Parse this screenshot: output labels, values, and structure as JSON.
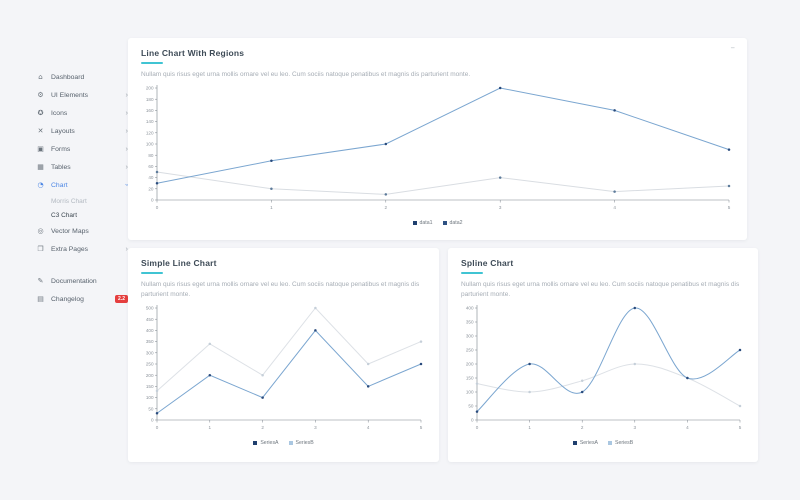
{
  "colors": {
    "accent_teal": "#40c4d3",
    "active_blue": "#4d87e5",
    "badge_red": "#e53e3e",
    "axis": "#7a828b",
    "tick_label": "#8b929a"
  },
  "icons": {
    "collapse_glyph": "–"
  },
  "sidebar": {
    "items": [
      {
        "label": "Dashboard",
        "icon_name": "home-icon",
        "glyph": "⌂",
        "chevron": null
      },
      {
        "label": "UI Elements",
        "icon_name": "gear-icon",
        "glyph": "⚙",
        "chevron": "right"
      },
      {
        "label": "Icons",
        "icon_name": "shield-icon",
        "glyph": "✪",
        "chevron": "right"
      },
      {
        "label": "Layouts",
        "icon_name": "layouts-icon",
        "glyph": "✕",
        "chevron": "right"
      },
      {
        "label": "Forms",
        "icon_name": "forms-icon",
        "glyph": "▣",
        "chevron": "right"
      },
      {
        "label": "Tables",
        "icon_name": "tables-icon",
        "glyph": "▦",
        "chevron": "right"
      },
      {
        "label": "Chart",
        "icon_name": "pie-chart-icon",
        "glyph": "◔",
        "chevron": "down",
        "active": true,
        "children": [
          {
            "label": "Morris Chart",
            "active": false
          },
          {
            "label": "C3 Chart",
            "active": true
          }
        ]
      },
      {
        "label": "Vector Maps",
        "icon_name": "globe-icon",
        "glyph": "◎",
        "chevron": null
      },
      {
        "label": "Extra Pages",
        "icon_name": "pages-icon",
        "glyph": "❐",
        "chevron": "right"
      }
    ],
    "footer_items": [
      {
        "label": "Documentation",
        "icon_name": "pencil-icon",
        "glyph": "✎"
      },
      {
        "label": "Changelog",
        "icon_name": "list-icon",
        "glyph": "▤",
        "badge": "2.2"
      }
    ]
  },
  "cards": [
    {
      "title": "Line Chart With Regions",
      "description": "Nullam quis risus eget urna mollis ornare vel eu leo. Cum sociis natoque penatibus et magnis dis parturient monte."
    },
    {
      "title": "Simple Line Chart",
      "description": "Nullam quis risus eget urna mollis ornare vel eu leo. Cum sociis natoque penatibus et magnis dis parturient monte."
    },
    {
      "title": "Spline Chart",
      "description": "Nullam quis risus eget urna mollis ornare vel eu leo. Cum sociis natoque penatibus et magnis dis parturient monte."
    }
  ],
  "chart_data": [
    {
      "type": "line",
      "title": "Line Chart With Regions",
      "x": [
        0,
        1,
        2,
        3,
        4,
        5
      ],
      "series": [
        {
          "name": "data1",
          "values": [
            30,
            70,
            100,
            200,
            160,
            90
          ],
          "line_color": "#7ba6d0",
          "point_color": "#284a7c",
          "legend_color": "#1f3f6e"
        },
        {
          "name": "data2",
          "values": [
            50,
            20,
            10,
            40,
            15,
            25
          ],
          "line_color": "#d9dde2",
          "point_color": "#5d7b9b",
          "legend_color": "#2e5182"
        }
      ],
      "xlabel": "",
      "ylabel": "",
      "ylim": [
        0,
        200
      ],
      "ystep": 20,
      "grid": false,
      "legend_position": "bottom",
      "curve": "linear"
    },
    {
      "type": "line",
      "title": "Simple Line Chart",
      "x": [
        0,
        1,
        2,
        3,
        4,
        5
      ],
      "series": [
        {
          "name": "SeriesA",
          "values": [
            30,
            200,
            100,
            400,
            150,
            250
          ],
          "line_color": "#7ba6d0",
          "point_color": "#284a7c",
          "legend_color": "#1f3f6e"
        },
        {
          "name": "SeriesB",
          "values": [
            130,
            340,
            200,
            500,
            250,
            350
          ],
          "line_color": "#dde1e6",
          "point_color": "#c5cfd9",
          "legend_color": "#aac7e1"
        }
      ],
      "xlabel": "",
      "ylabel": "",
      "ylim": [
        0,
        500
      ],
      "ystep": 50,
      "grid": false,
      "legend_position": "bottom",
      "curve": "linear"
    },
    {
      "type": "line",
      "title": "Spline Chart",
      "x": [
        0,
        1,
        2,
        3,
        4,
        5
      ],
      "series": [
        {
          "name": "SeriesA",
          "values": [
            30,
            200,
            100,
            400,
            150,
            250
          ],
          "line_color": "#7ba6d0",
          "point_color": "#284a7c",
          "legend_color": "#1f3f6e"
        },
        {
          "name": "SeriesB",
          "values": [
            130,
            100,
            140,
            200,
            150,
            50
          ],
          "line_color": "#dde1e6",
          "point_color": "#c5cfd9",
          "legend_color": "#aac7e1"
        }
      ],
      "xlabel": "",
      "ylabel": "",
      "ylim": [
        0,
        400
      ],
      "ystep": 50,
      "grid": false,
      "legend_position": "bottom",
      "curve": "spline"
    }
  ]
}
